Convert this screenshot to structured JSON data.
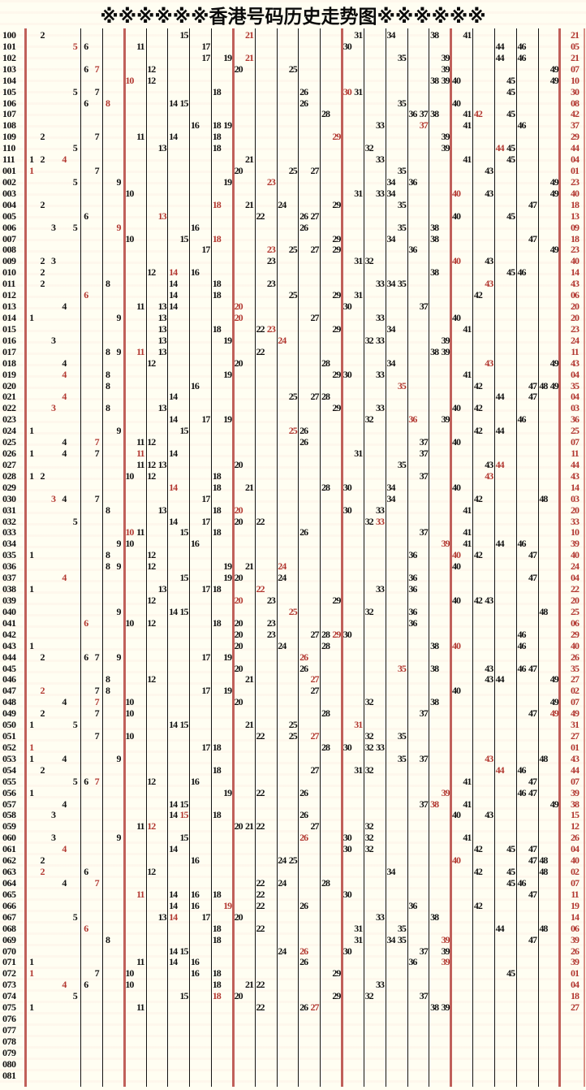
{
  "title": "※※※※※※香港号码历史走势图※※※※※※",
  "colors": {
    "background": "#fffef2",
    "grid_black": "#141414",
    "grid_red": "#c0605a",
    "number_black": "#111111",
    "number_red": "#b23730"
  },
  "chart_data": {
    "type": "table",
    "title": "※※※※※※香港号码历史走势图※※※※※※",
    "description": "Hong Kong lottery number history trend chart; columns are numbers 1-49 grouped by tens with red separators; red number in each row is the special number, repeated in the rightmost red column.",
    "column_range": [
      1,
      49
    ],
    "group_separators_after": [
      9,
      19,
      29,
      39,
      49
    ],
    "legend_position": "none",
    "grid": "vertical-only",
    "rows": [
      {
        "label": "100",
        "numbers": [
          2,
          15,
          21,
          31,
          34,
          38,
          41
        ],
        "special": 21
      },
      {
        "label": "101",
        "numbers": [
          5,
          6,
          11,
          17,
          30,
          44,
          46
        ],
        "special": 5
      },
      {
        "label": "102",
        "numbers": [
          17,
          19,
          21,
          35,
          39,
          44,
          46
        ],
        "special": 21
      },
      {
        "label": "103",
        "numbers": [
          6,
          7,
          12,
          20,
          25,
          39,
          49
        ],
        "special": 7
      },
      {
        "label": "104",
        "numbers": [
          10,
          12,
          38,
          39,
          40,
          45,
          49
        ],
        "special": 10
      },
      {
        "label": "105",
        "numbers": [
          5,
          7,
          18,
          26,
          30,
          31,
          45
        ],
        "special": 30
      },
      {
        "label": "106",
        "numbers": [
          6,
          8,
          14,
          15,
          26,
          35,
          40
        ],
        "special": 8
      },
      {
        "label": "107",
        "numbers": [
          28,
          36,
          37,
          38,
          41,
          42,
          45
        ],
        "special": 42
      },
      {
        "label": "108",
        "numbers": [
          16,
          18,
          19,
          33,
          37,
          41,
          46
        ],
        "special": 37
      },
      {
        "label": "109",
        "numbers": [
          2,
          7,
          11,
          14,
          18,
          29,
          39
        ],
        "special": 29
      },
      {
        "label": "110",
        "numbers": [
          5,
          13,
          18,
          32,
          39,
          44,
          45
        ],
        "special": 44
      },
      {
        "label": "111",
        "numbers": [
          1,
          2,
          4,
          21,
          33,
          41,
          45
        ],
        "special": 4
      },
      {
        "label": "001",
        "numbers": [
          1,
          7,
          20,
          25,
          27,
          35,
          43
        ],
        "special": 1
      },
      {
        "label": "002",
        "numbers": [
          5,
          9,
          19,
          23,
          34,
          36,
          49
        ],
        "special": 23
      },
      {
        "label": "003",
        "numbers": [
          10,
          31,
          33,
          34,
          40,
          43,
          49
        ],
        "special": 40
      },
      {
        "label": "004",
        "numbers": [
          2,
          18,
          21,
          24,
          29,
          35,
          47
        ],
        "special": 18
      },
      {
        "label": "005",
        "numbers": [
          6,
          13,
          22,
          26,
          27,
          40,
          45
        ],
        "special": 13
      },
      {
        "label": "006",
        "numbers": [
          3,
          5,
          9,
          16,
          26,
          35,
          38
        ],
        "special": 9
      },
      {
        "label": "007",
        "numbers": [
          10,
          15,
          18,
          29,
          34,
          38,
          47
        ],
        "special": 18
      },
      {
        "label": "008",
        "numbers": [
          17,
          23,
          25,
          27,
          29,
          36,
          49
        ],
        "special": 23
      },
      {
        "label": "009",
        "numbers": [
          2,
          3,
          23,
          31,
          32,
          40,
          43
        ],
        "special": 40
      },
      {
        "label": "010",
        "numbers": [
          2,
          12,
          14,
          16,
          38,
          45,
          46
        ],
        "special": 14
      },
      {
        "label": "011",
        "numbers": [
          2,
          8,
          14,
          18,
          23,
          33,
          34,
          35,
          43
        ],
        "special": 43
      },
      {
        "label": "012",
        "numbers": [
          6,
          14,
          18,
          25,
          29,
          31,
          42
        ],
        "special": 6
      },
      {
        "label": "013",
        "numbers": [
          4,
          11,
          13,
          14,
          20,
          30,
          37
        ],
        "special": 20
      },
      {
        "label": "014",
        "numbers": [
          1,
          9,
          13,
          20,
          27,
          33,
          40
        ],
        "special": 20
      },
      {
        "label": "015",
        "numbers": [
          13,
          18,
          22,
          23,
          29,
          34,
          41
        ],
        "special": 23
      },
      {
        "label": "016",
        "numbers": [
          3,
          13,
          19,
          24,
          32,
          33,
          39
        ],
        "special": 24
      },
      {
        "label": "017",
        "numbers": [
          8,
          9,
          11,
          13,
          22,
          38,
          39
        ],
        "special": 11
      },
      {
        "label": "018",
        "numbers": [
          4,
          12,
          20,
          28,
          34,
          43,
          49
        ],
        "special": 43
      },
      {
        "label": "019",
        "numbers": [
          4,
          8,
          19,
          29,
          30,
          33,
          41
        ],
        "special": 4
      },
      {
        "label": "020",
        "numbers": [
          8,
          16,
          35,
          42,
          47,
          48,
          49
        ],
        "special": 35
      },
      {
        "label": "021",
        "numbers": [
          4,
          14,
          25,
          27,
          28,
          44,
          47
        ],
        "special": 4
      },
      {
        "label": "022",
        "numbers": [
          3,
          8,
          13,
          29,
          33,
          40,
          42
        ],
        "special": 3
      },
      {
        "label": "023",
        "numbers": [
          14,
          17,
          19,
          32,
          36,
          39,
          46
        ],
        "special": 36
      },
      {
        "label": "024",
        "numbers": [
          1,
          9,
          15,
          25,
          26,
          42,
          44
        ],
        "special": 25
      },
      {
        "label": "025",
        "numbers": [
          4,
          7,
          11,
          12,
          26,
          37,
          40
        ],
        "special": 7
      },
      {
        "label": "026",
        "numbers": [
          1,
          4,
          7,
          11,
          14,
          31,
          37
        ],
        "special": 11
      },
      {
        "label": "027",
        "numbers": [
          11,
          12,
          13,
          20,
          35,
          43,
          44
        ],
        "special": 44
      },
      {
        "label": "028",
        "numbers": [
          1,
          2,
          10,
          12,
          18,
          37,
          43
        ],
        "special": 43
      },
      {
        "label": "029",
        "numbers": [
          14,
          18,
          21,
          28,
          30,
          34,
          40
        ],
        "special": 14
      },
      {
        "label": "030",
        "numbers": [
          3,
          4,
          7,
          17,
          34,
          42,
          48
        ],
        "special": 3
      },
      {
        "label": "031",
        "numbers": [
          8,
          13,
          18,
          20,
          30,
          33,
          41
        ],
        "special": 20
      },
      {
        "label": "032",
        "numbers": [
          5,
          14,
          17,
          20,
          22,
          32,
          33
        ],
        "special": 33
      },
      {
        "label": "033",
        "numbers": [
          10,
          11,
          15,
          18,
          26,
          37,
          41
        ],
        "special": 10
      },
      {
        "label": "034",
        "numbers": [
          9,
          10,
          16,
          39,
          41,
          44,
          46
        ],
        "special": 39
      },
      {
        "label": "035",
        "numbers": [
          1,
          8,
          12,
          36,
          40,
          42,
          47
        ],
        "special": 40
      },
      {
        "label": "036",
        "numbers": [
          8,
          9,
          12,
          19,
          21,
          24,
          40
        ],
        "special": 24
      },
      {
        "label": "037",
        "numbers": [
          4,
          15,
          19,
          20,
          24,
          36,
          47
        ],
        "special": 4
      },
      {
        "label": "038",
        "numbers": [
          1,
          13,
          17,
          18,
          22,
          33,
          36
        ],
        "special": 22
      },
      {
        "label": "039",
        "numbers": [
          12,
          20,
          23,
          29,
          40,
          42,
          43
        ],
        "special": 20
      },
      {
        "label": "040",
        "numbers": [
          9,
          14,
          15,
          25,
          32,
          36,
          48
        ],
        "special": 25
      },
      {
        "label": "041",
        "numbers": [
          6,
          10,
          12,
          18,
          20,
          23,
          36
        ],
        "special": 6
      },
      {
        "label": "042",
        "numbers": [
          20,
          23,
          27,
          28,
          29,
          30,
          46
        ],
        "special": 29
      },
      {
        "label": "043",
        "numbers": [
          1,
          20,
          24,
          28,
          38,
          40,
          46
        ],
        "special": 40
      },
      {
        "label": "044",
        "numbers": [
          2,
          6,
          7,
          9,
          17,
          19,
          26
        ],
        "special": 26
      },
      {
        "label": "045",
        "numbers": [
          20,
          26,
          35,
          38,
          43,
          46,
          47
        ],
        "special": 35
      },
      {
        "label": "046",
        "numbers": [
          8,
          12,
          21,
          27,
          43,
          44,
          49
        ],
        "special": 27
      },
      {
        "label": "047",
        "numbers": [
          2,
          7,
          8,
          17,
          19,
          27,
          40
        ],
        "special": 2
      },
      {
        "label": "048",
        "numbers": [
          4,
          7,
          10,
          20,
          32,
          38,
          49
        ],
        "special": 7
      },
      {
        "label": "049",
        "numbers": [
          2,
          7,
          10,
          28,
          37,
          47,
          49
        ],
        "special": 49
      },
      {
        "label": "050",
        "numbers": [
          1,
          5,
          14,
          15,
          21,
          25,
          31
        ],
        "special": 31
      },
      {
        "label": "051",
        "numbers": [
          7,
          10,
          22,
          25,
          27,
          32,
          35
        ],
        "special": 27
      },
      {
        "label": "052",
        "numbers": [
          1,
          17,
          18,
          28,
          30,
          32,
          33
        ],
        "special": 1
      },
      {
        "label": "053",
        "numbers": [
          1,
          4,
          9,
          35,
          37,
          43,
          48
        ],
        "special": 43
      },
      {
        "label": "054",
        "numbers": [
          2,
          18,
          27,
          31,
          32,
          44,
          46
        ],
        "special": 44
      },
      {
        "label": "055",
        "numbers": [
          5,
          6,
          7,
          12,
          16,
          41,
          47
        ],
        "special": 7
      },
      {
        "label": "056",
        "numbers": [
          1,
          19,
          22,
          26,
          39,
          46,
          47
        ],
        "special": 39
      },
      {
        "label": "057",
        "numbers": [
          4,
          14,
          15,
          37,
          38,
          41,
          49
        ],
        "special": 38
      },
      {
        "label": "058",
        "numbers": [
          3,
          14,
          15,
          18,
          26,
          40,
          43
        ],
        "special": 15
      },
      {
        "label": "059",
        "numbers": [
          11,
          12,
          20,
          21,
          22,
          27,
          32
        ],
        "special": 12
      },
      {
        "label": "060",
        "numbers": [
          3,
          9,
          15,
          26,
          30,
          32,
          41
        ],
        "special": 26
      },
      {
        "label": "061",
        "numbers": [
          4,
          14,
          30,
          32,
          42,
          45,
          47
        ],
        "special": 4
      },
      {
        "label": "062",
        "numbers": [
          2,
          16,
          24,
          25,
          40,
          47,
          48
        ],
        "special": 40
      },
      {
        "label": "063",
        "numbers": [
          2,
          6,
          12,
          34,
          42,
          45,
          48
        ],
        "special": 2
      },
      {
        "label": "064",
        "numbers": [
          4,
          7,
          22,
          24,
          28,
          45,
          46
        ],
        "special": 7
      },
      {
        "label": "065",
        "numbers": [
          11,
          14,
          16,
          18,
          22,
          30,
          47
        ],
        "special": 11
      },
      {
        "label": "066",
        "numbers": [
          14,
          16,
          19,
          22,
          26,
          36,
          42
        ],
        "special": 19
      },
      {
        "label": "067",
        "numbers": [
          5,
          13,
          14,
          17,
          20,
          33,
          38
        ],
        "special": 14
      },
      {
        "label": "068",
        "numbers": [
          6,
          18,
          22,
          31,
          35,
          44,
          48
        ],
        "special": 6
      },
      {
        "label": "069",
        "numbers": [
          8,
          18,
          31,
          34,
          35,
          39,
          47
        ],
        "special": 39
      },
      {
        "label": "070",
        "numbers": [
          14,
          15,
          24,
          26,
          30,
          37,
          39
        ],
        "special": 26
      },
      {
        "label": "071",
        "numbers": [
          1,
          11,
          14,
          16,
          26,
          36,
          39
        ],
        "special": 39
      },
      {
        "label": "072",
        "numbers": [
          1,
          7,
          10,
          16,
          18,
          29,
          45
        ],
        "special": 1
      },
      {
        "label": "073",
        "numbers": [
          4,
          6,
          10,
          18,
          21,
          22,
          33
        ],
        "special": 4
      },
      {
        "label": "074",
        "numbers": [
          5,
          15,
          18,
          20,
          29,
          32,
          37
        ],
        "special": 18
      },
      {
        "label": "075",
        "numbers": [
          1,
          11,
          22,
          26,
          27,
          38,
          39
        ],
        "special": 27
      },
      {
        "label": "076",
        "numbers": [],
        "special": null
      },
      {
        "label": "077",
        "numbers": [],
        "special": null
      },
      {
        "label": "078",
        "numbers": [],
        "special": null
      },
      {
        "label": "079",
        "numbers": [],
        "special": null
      },
      {
        "label": "080",
        "numbers": [],
        "special": null
      },
      {
        "label": "081",
        "numbers": [],
        "special": null
      }
    ]
  }
}
